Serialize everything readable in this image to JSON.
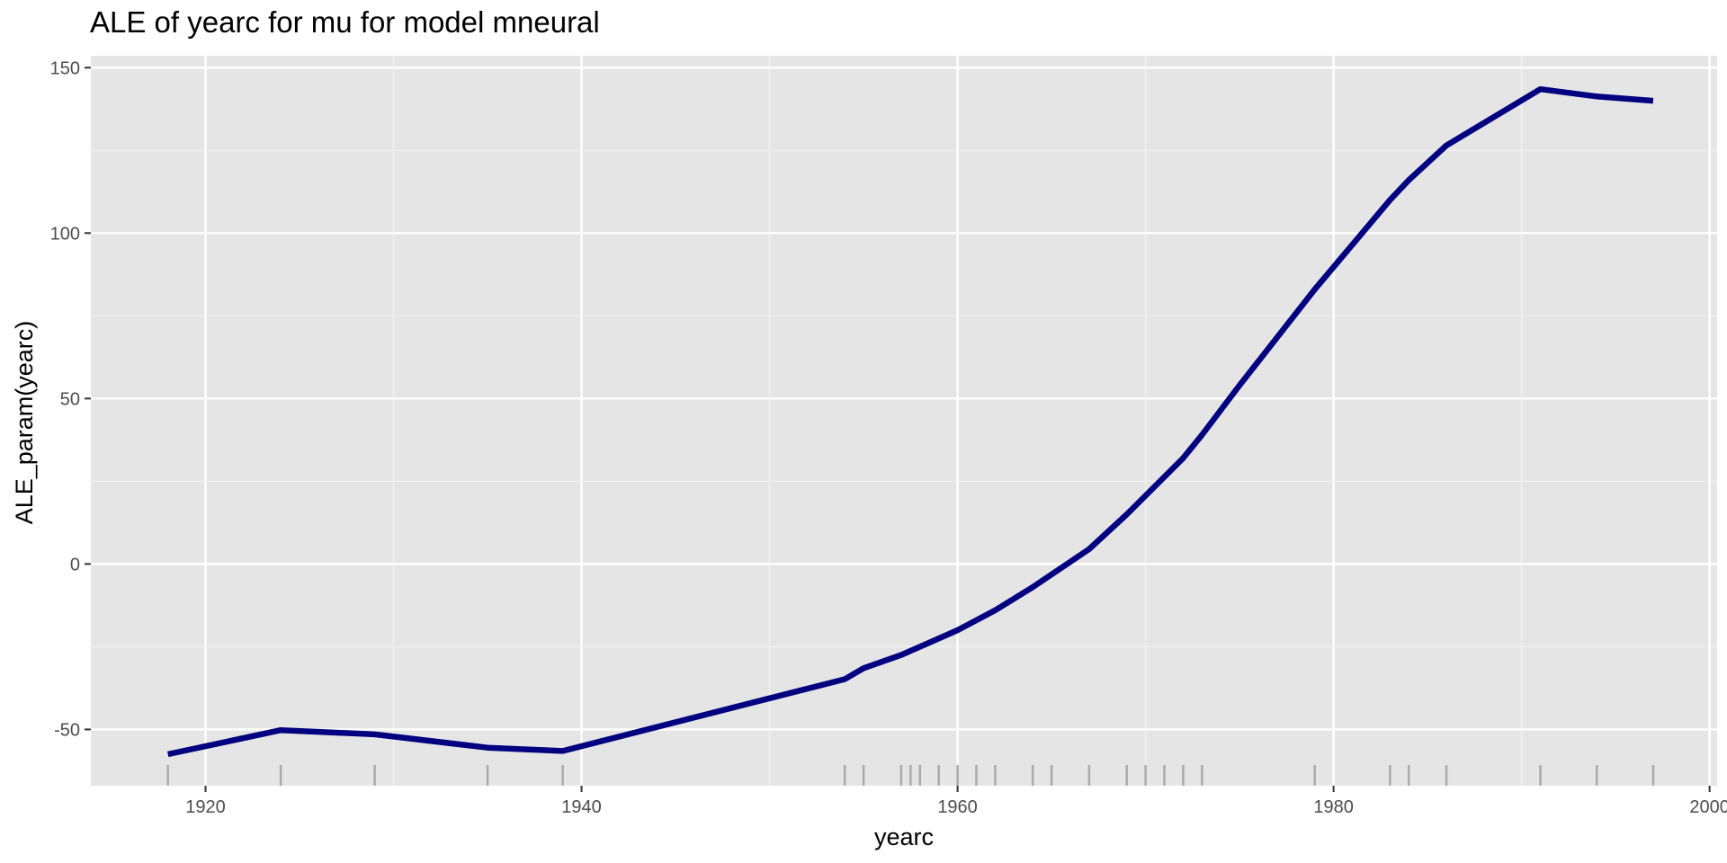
{
  "chart_data": {
    "type": "line",
    "title": "ALE of yearc for mu for model mneural",
    "xlabel": "yearc",
    "ylabel": "ALE_param(yearc)",
    "xlim": [
      1913.9,
      2000.4
    ],
    "ylim": [
      -67,
      153.6
    ],
    "xticks": [
      1920,
      1940,
      1960,
      1980,
      2000
    ],
    "yticks": [
      -50,
      0,
      50,
      100,
      150
    ],
    "ytick_labels": [
      "-50",
      "0",
      "50",
      "100",
      "150"
    ],
    "grid": true,
    "legend": "none",
    "line_color": "#000080",
    "series": [
      {
        "x": [
          1918,
          1924,
          1929,
          1935,
          1939,
          1954,
          1955,
          1957,
          1960,
          1962,
          1964,
          1967,
          1969,
          1972,
          1973,
          1975,
          1979,
          1983,
          1984,
          1986,
          1991,
          1994,
          1997
        ],
        "y": [
          -57.5,
          -50.2,
          -51.5,
          -55.5,
          -56.5,
          -34.8,
          -31.5,
          -27.5,
          -20,
          -14,
          -7,
          4.5,
          15,
          32,
          39,
          54,
          83,
          110,
          116,
          126.5,
          143.5,
          141.3,
          140
        ]
      }
    ],
    "rug": [
      1918,
      1924,
      1929,
      1935,
      1939,
      1954,
      1955,
      1957,
      1957.5,
      1958,
      1959,
      1960,
      1961,
      1962,
      1964,
      1965,
      1967,
      1969,
      1970,
      1971,
      1972,
      1973,
      1979,
      1983,
      1984,
      1986,
      1991,
      1994,
      1997
    ]
  }
}
